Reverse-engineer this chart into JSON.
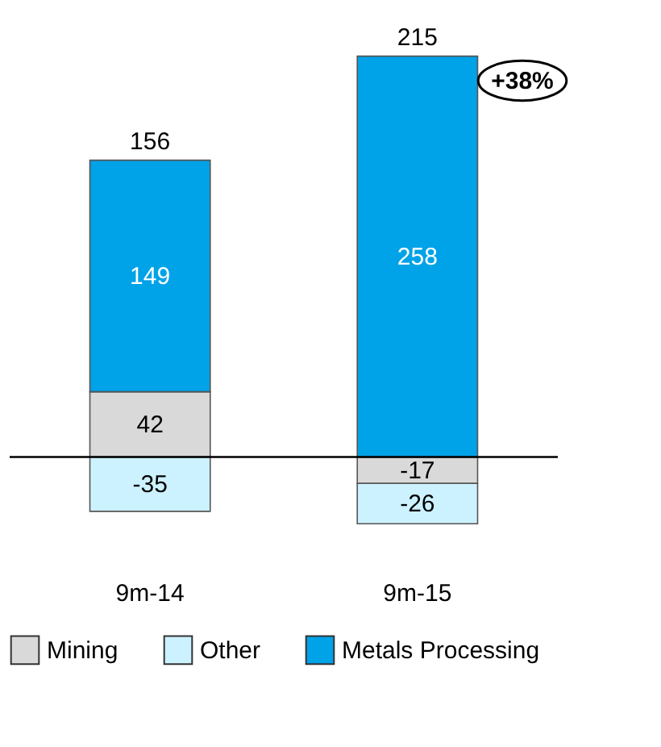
{
  "chart_data": {
    "type": "bar",
    "stacked": true,
    "categories": [
      "9m-14",
      "9m-15"
    ],
    "series": [
      {
        "name": "Mining",
        "color": "#d9d9d9",
        "values": [
          42,
          -17
        ]
      },
      {
        "name": "Other",
        "color": "#ccf2ff",
        "values": [
          -35,
          -26
        ]
      },
      {
        "name": "Metals Processing",
        "color": "#00a2e8",
        "values": [
          149,
          258
        ]
      }
    ],
    "data_labels": true,
    "totals": [
      "156",
      "215"
    ],
    "annotations": [
      "+38%"
    ],
    "ref_lines": [
      {
        "axis": "y",
        "value": 0,
        "color": "#000000"
      }
    ],
    "legend": "bottom"
  }
}
